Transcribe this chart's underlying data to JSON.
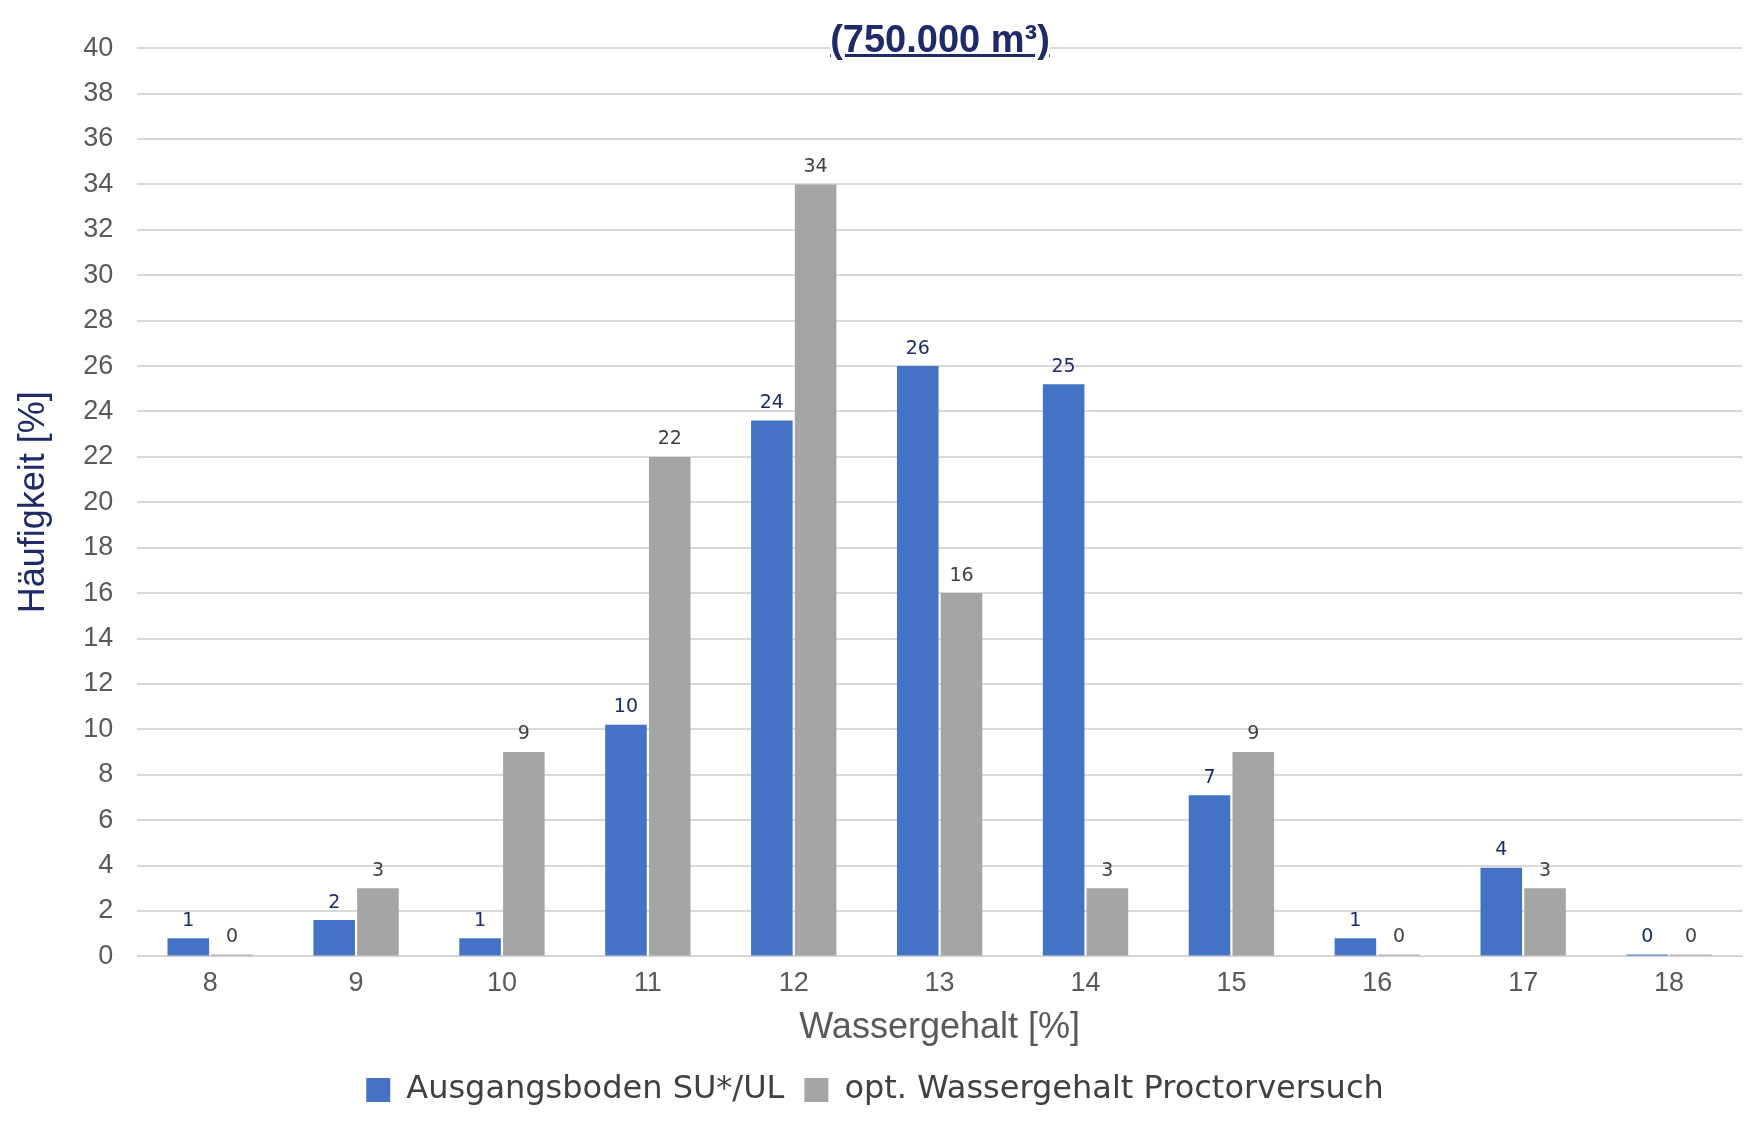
{
  "chart_data": {
    "type": "bar",
    "title": "(750.000 m³)",
    "xlabel": "Wassergehalt [%]",
    "ylabel": "Häufigkeit [%]",
    "categories": [
      "8",
      "9",
      "10",
      "11",
      "12",
      "13",
      "14",
      "15",
      "16",
      "17",
      "18"
    ],
    "series": [
      {
        "name": "Ausgangsboden SU*/UL",
        "color": "#4472c4",
        "values": [
          0.8,
          1.6,
          0.8,
          10.2,
          23.6,
          26,
          25.2,
          7.1,
          0.8,
          3.9,
          0
        ],
        "value_labels": [
          "1",
          "2",
          "1",
          "10",
          "24",
          "26",
          "25",
          "7",
          "1",
          "4",
          "0"
        ]
      },
      {
        "name": "opt. Wassergehalt Proctorversuch",
        "color": "#a5a5a5",
        "values": [
          0,
          3,
          9,
          22,
          34,
          16,
          3,
          9,
          0,
          3,
          0
        ],
        "value_labels": [
          "0",
          "3",
          "9",
          "22",
          "34",
          "16",
          "3",
          "9",
          "0",
          "3",
          "0"
        ]
      }
    ],
    "ylim": [
      0,
      40
    ],
    "yticks": [
      0,
      2,
      4,
      6,
      8,
      10,
      12,
      14,
      16,
      18,
      20,
      22,
      24,
      26,
      28,
      30,
      32,
      34,
      36,
      38,
      40
    ],
    "grid": "y",
    "legend": "bottom"
  }
}
